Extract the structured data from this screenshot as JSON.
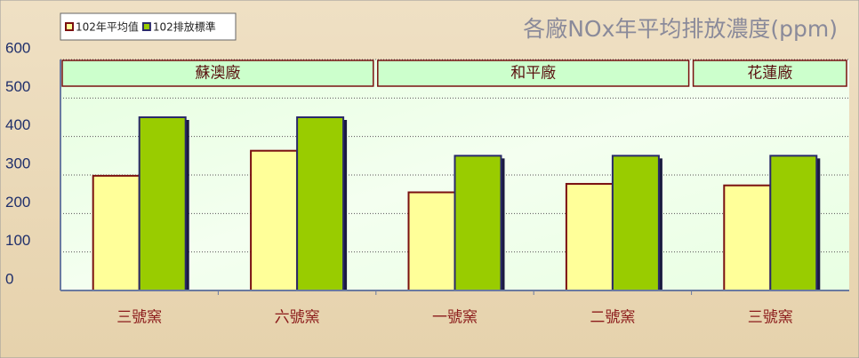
{
  "chart_data": {
    "type": "bar",
    "title": "各廠NOx年平均排放濃度(ppm)",
    "categories": [
      "三號窯",
      "六號窯",
      "一號窯",
      "二號窯",
      "三號窯"
    ],
    "groups": [
      "蘇澳廠",
      "蘇澳廠",
      "和平廠",
      "和平廠",
      "花蓮廠"
    ],
    "series": [
      {
        "name": "102年平均值",
        "color": "#ffff99",
        "values": [
          298,
          363,
          255,
          277,
          273
        ]
      },
      {
        "name": "102排放標準",
        "color": "#99cc00",
        "values": [
          450,
          450,
          350,
          350,
          350
        ]
      }
    ],
    "ylim": [
      0,
      600
    ],
    "yticks": [
      0,
      100,
      200,
      300,
      400,
      500,
      600
    ],
    "grid": true,
    "legend": "top-left"
  }
}
